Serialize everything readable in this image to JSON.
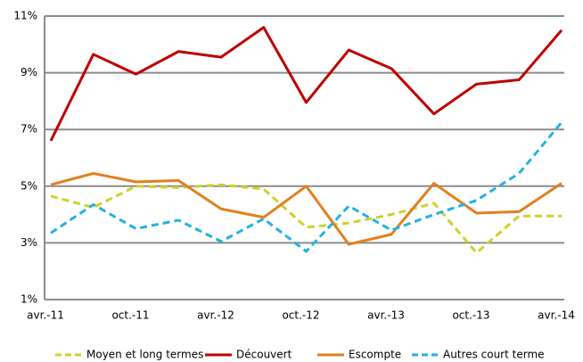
{
  "chart_data": {
    "type": "line",
    "categories": [
      "avr.-11",
      null,
      "oct.-11",
      null,
      "avr.-12",
      null,
      "oct.-12",
      null,
      "avr.-13",
      null,
      "oct.-13",
      null,
      "avr.-14"
    ],
    "series": [
      {
        "name": "Moyen et long termes",
        "color": "#cfd12a",
        "dashed": true,
        "values": [
          4.65,
          4.25,
          5.0,
          4.95,
          5.05,
          4.9,
          3.55,
          3.7,
          4.0,
          4.4,
          2.65,
          3.95,
          3.95
        ]
      },
      {
        "name": "Découvert",
        "color": "#c00000",
        "dashed": false,
        "values": [
          6.6,
          9.65,
          8.95,
          9.75,
          9.55,
          10.6,
          7.95,
          9.8,
          9.15,
          7.55,
          8.6,
          8.75,
          10.5
        ]
      },
      {
        "name": "Escompte",
        "color": "#e2801f",
        "dashed": false,
        "values": [
          5.05,
          5.45,
          5.15,
          5.2,
          4.2,
          3.9,
          5.0,
          2.95,
          3.3,
          5.1,
          4.05,
          4.1,
          5.1
        ]
      },
      {
        "name": "Autres court terme",
        "color": "#22b2e2",
        "dashed": true,
        "values": [
          3.35,
          4.35,
          3.5,
          3.8,
          3.05,
          3.85,
          2.7,
          4.3,
          3.45,
          4.0,
          4.5,
          5.45,
          7.25
        ]
      }
    ],
    "ylim": [
      1,
      11
    ],
    "yticks": [
      {
        "value": 1,
        "label": "1%"
      },
      {
        "value": 3,
        "label": "3%"
      },
      {
        "value": 5,
        "label": "5%"
      },
      {
        "value": 7,
        "label": "7%"
      },
      {
        "value": 9,
        "label": "9%"
      },
      {
        "value": 11,
        "label": "11%"
      }
    ],
    "grid": true,
    "legend": "bottom"
  }
}
